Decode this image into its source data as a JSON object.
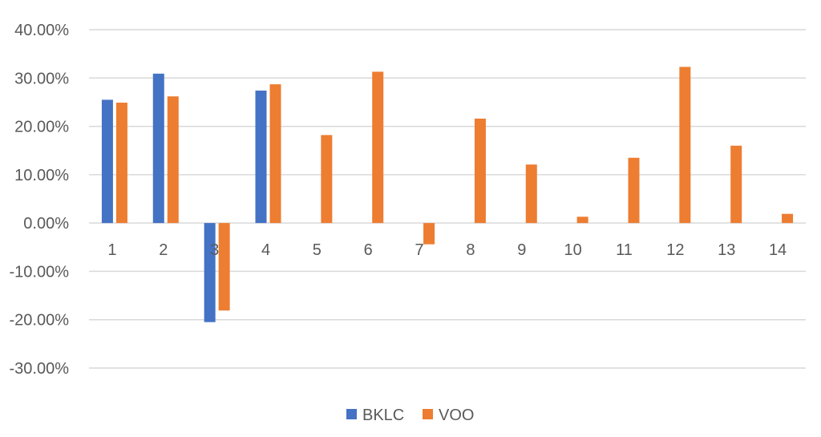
{
  "chart_data": {
    "type": "bar",
    "title": "",
    "xlabel": "",
    "ylabel": "",
    "categories": [
      "1",
      "2",
      "3",
      "4",
      "5",
      "6",
      "7",
      "8",
      "9",
      "10",
      "11",
      "12",
      "13",
      "14"
    ],
    "series": [
      {
        "name": "BKLC",
        "color": "#4472c4",
        "values": [
          0.255,
          0.309,
          -0.205,
          0.274,
          null,
          null,
          null,
          null,
          null,
          null,
          null,
          null,
          null,
          null
        ]
      },
      {
        "name": "VOO",
        "color": "#ed7d31",
        "values": [
          0.249,
          0.262,
          -0.181,
          0.287,
          0.182,
          0.313,
          -0.044,
          0.216,
          0.121,
          0.013,
          0.135,
          0.323,
          0.16,
          0.019
        ]
      }
    ],
    "ylim": [
      -0.3,
      0.4
    ],
    "yticks": [
      0.4,
      0.3,
      0.2,
      0.1,
      0.0,
      -0.1,
      -0.2,
      -0.3
    ],
    "ytick_labels": [
      "40.00%",
      "30.00%",
      "20.00%",
      "10.00%",
      "0.00%",
      "-10.00%",
      "-20.00%",
      "-30.00%"
    ],
    "grid": true,
    "legend": "bottom-center",
    "gridline_color": "#d9d9d9"
  }
}
